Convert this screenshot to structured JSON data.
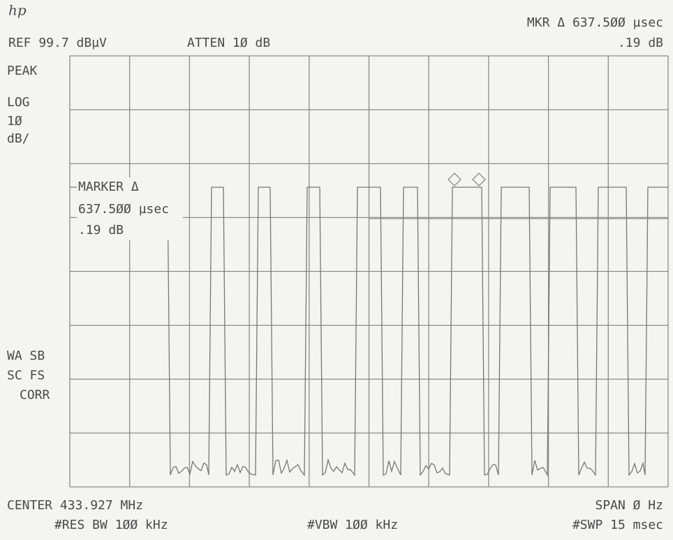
{
  "header": {
    "logo": "hp",
    "marker_readout": "MKR Δ 637.5ØØ µsec",
    "marker_level": ".19 dB",
    "reference": "REF 99.7 dBµV",
    "attenuation": "ATTEN 1Ø dB"
  },
  "left_labels": {
    "top": [
      "PEAK",
      "LOG",
      "1Ø",
      "dB/"
    ],
    "bottom": [
      "WA SB",
      "SC FS",
      "CORR"
    ]
  },
  "marker_box": [
    "MARKER Δ",
    "637.5ØØ µsec",
    ".19 dB"
  ],
  "footer": {
    "center": "CENTER 433.927 MHz",
    "span": "SPAN Ø Hz",
    "res_bw": "#RES BW 1ØØ kHz",
    "vbw": "#VBW 1ØØ kHz",
    "sweep": "#SWP 15 msec"
  }
}
